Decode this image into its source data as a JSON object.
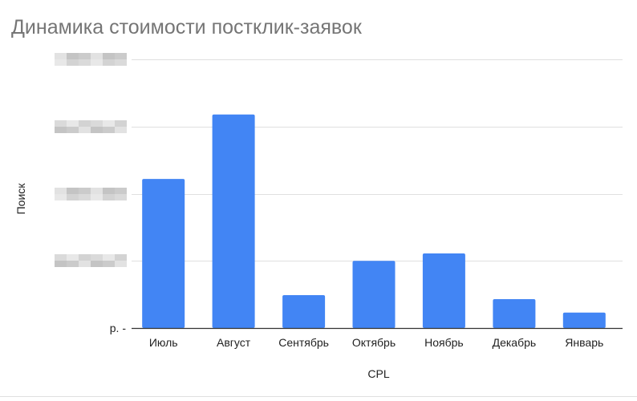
{
  "chart_data": {
    "type": "bar",
    "title": "Динамика стоимости постклик-заявок",
    "xlabel": "CPL",
    "ylabel": "Поиск",
    "categories": [
      "Июль",
      "Август",
      "Сентябрь",
      "Октябрь",
      "Ноябрь",
      "Декабрь",
      "Январь"
    ],
    "series": [
      {
        "values": [
          2.22,
          3.18,
          0.49,
          1.0,
          1.11,
          0.43,
          0.23
        ]
      }
    ],
    "ylim": [
      0,
      4
    ],
    "y_tick_labels": [
      "р. -",
      "",
      "",
      "",
      ""
    ],
    "y_tick_labels_obscured": true,
    "grid": true,
    "legend": "none",
    "colors": {
      "bar": "#4285F4",
      "grid": "#e0e0e0",
      "axis": "#333333"
    }
  }
}
